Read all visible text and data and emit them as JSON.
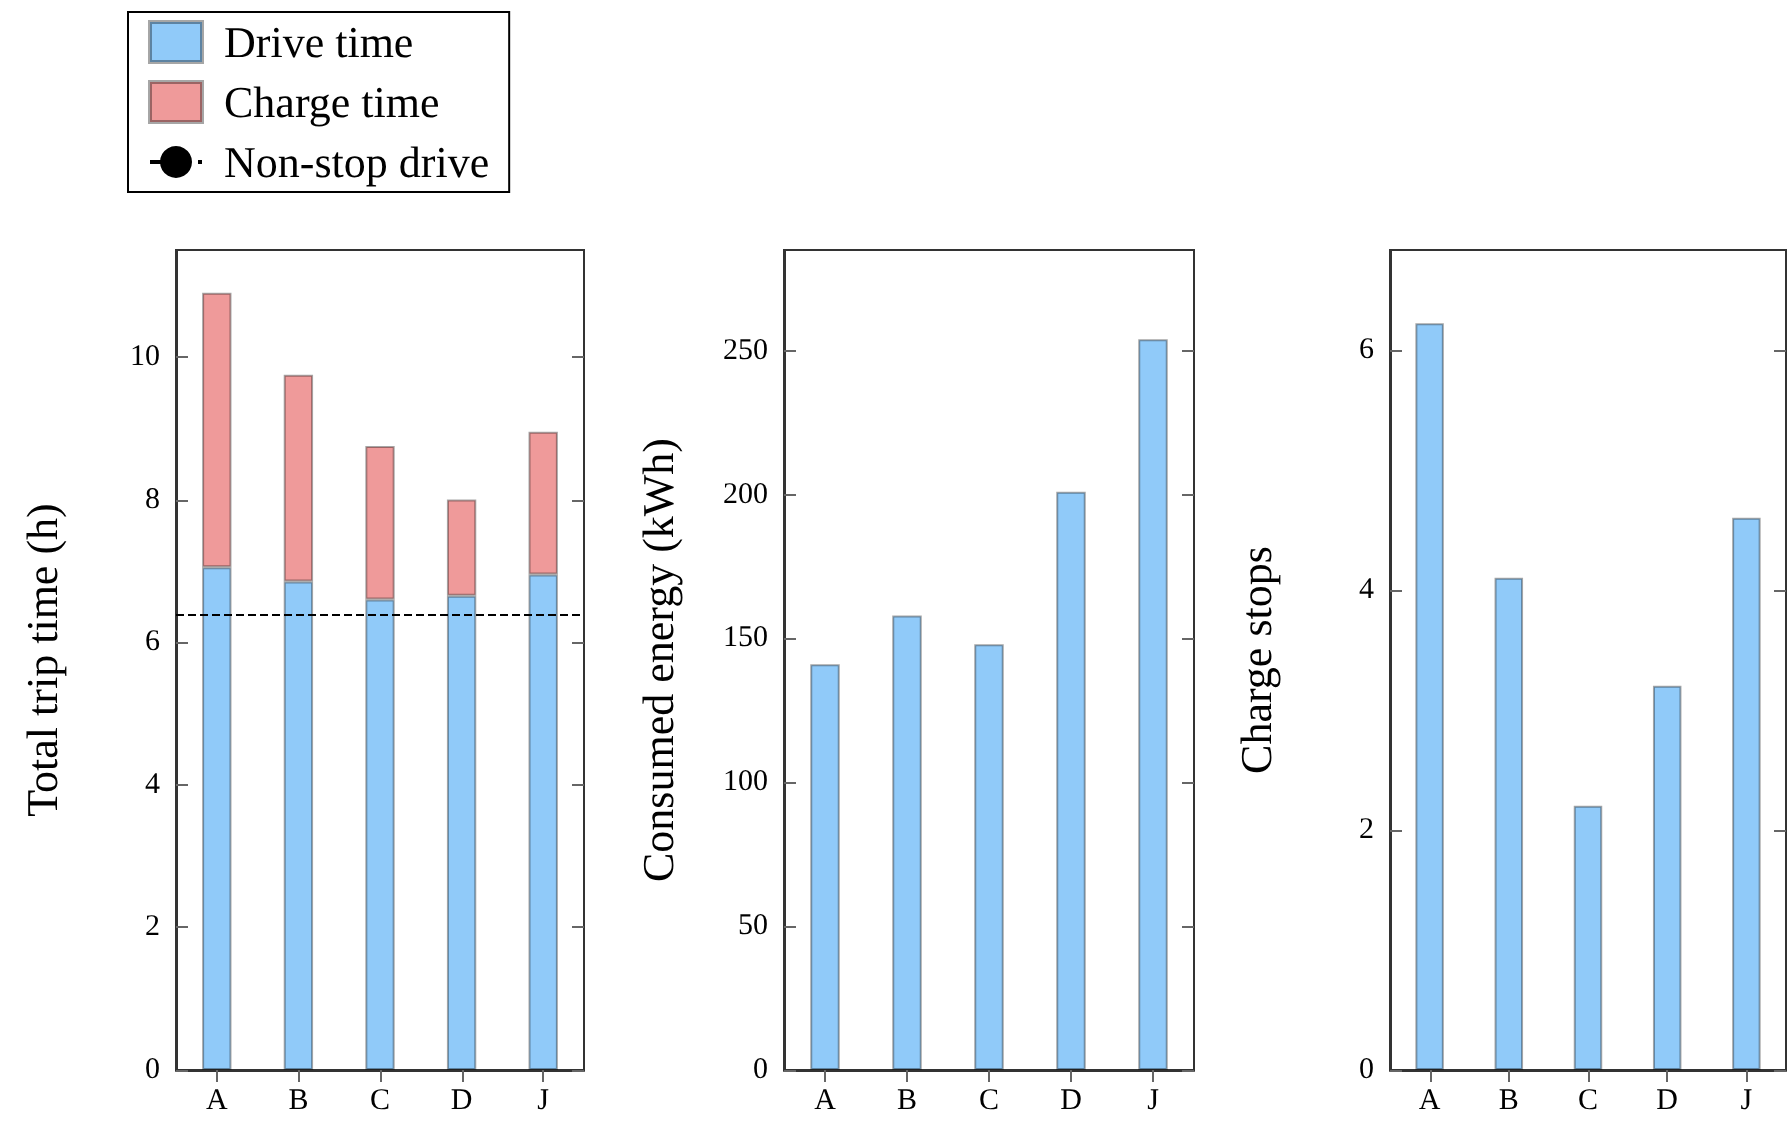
{
  "chart_data": [
    {
      "type": "bar",
      "stacked": true,
      "categories": [
        "A",
        "B",
        "C",
        "D",
        "J"
      ],
      "ylabel": "Total trip time (h)",
      "ylim": [
        0,
        11.5
      ],
      "yticks": [
        0,
        2,
        4,
        6,
        8,
        10
      ],
      "legend": "top left",
      "series": [
        {
          "name": "Drive time",
          "color": "#90caf9",
          "values": [
            7.05,
            6.85,
            6.6,
            6.65,
            6.95
          ]
        },
        {
          "name": "Charge time",
          "color": "#ef9a9a",
          "values": [
            3.85,
            2.9,
            2.15,
            1.35,
            2.0
          ]
        }
      ],
      "ref_lines": [
        {
          "axis": "y",
          "value": 6.4,
          "label": "Non-stop drive",
          "line_style": "dashed",
          "color": "#000000"
        }
      ]
    },
    {
      "type": "bar",
      "categories": [
        "A",
        "B",
        "C",
        "D",
        "J"
      ],
      "ylabel": "Consumed energy (kWh)",
      "ylim": [
        0,
        285
      ],
      "yticks": [
        0,
        50,
        100,
        150,
        200,
        250
      ],
      "color": "#90caf9",
      "values": [
        141,
        158,
        148,
        201,
        254
      ]
    },
    {
      "type": "bar",
      "categories": [
        "A",
        "B",
        "C",
        "D",
        "J"
      ],
      "ylabel": "Charge stops",
      "ylim": [
        0,
        6.83
      ],
      "yticks": [
        0,
        2,
        4,
        6
      ],
      "color": "#90caf9",
      "values": [
        6.22,
        4.1,
        2.2,
        3.2,
        4.6
      ]
    }
  ]
}
